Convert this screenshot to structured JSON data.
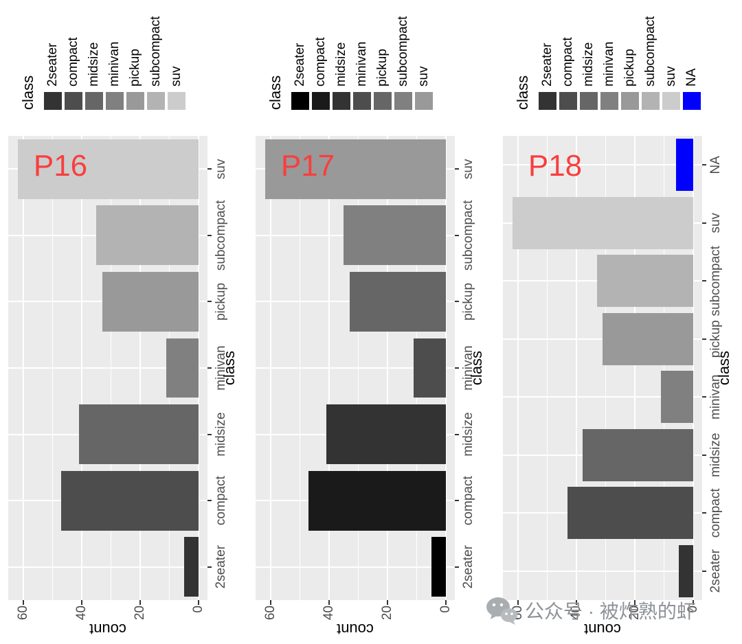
{
  "page": {
    "background": "#FFFFFF",
    "watermark": {
      "text": "公众号 · 被炸熟的虾",
      "icon": "wechat-icon",
      "text_color": "#8E9297",
      "icon_color": "#A9ADB0"
    }
  },
  "layout": {
    "arrangement": "three bar charts side by side, each rendered rotated 90 degrees counter-clockwise",
    "chart_rotation_deg": -90,
    "legend_position": "right of original chart (appears along top after rotation)"
  },
  "chart_style": {
    "panel_bg": "#EBEBEB",
    "grid_color": "#FFFFFF",
    "axis_text_color": "#4D4D4D",
    "axis_title_color": "#000000",
    "tick_color": "#333333",
    "panel_label_color": "#F93E3E"
  },
  "chart_data": [
    {
      "type": "bar",
      "panel_label": "P16",
      "title": "",
      "xlabel": "class",
      "ylabel": "count",
      "categories": [
        "2seater",
        "compact",
        "midsize",
        "minivan",
        "pickup",
        "subcompact",
        "suv"
      ],
      "values": [
        5,
        47,
        41,
        11,
        33,
        35,
        62
      ],
      "bar_colors": [
        "#333333",
        "#4D4D4D",
        "#666666",
        "#808080",
        "#999999",
        "#B3B3B3",
        "#CCCCCC"
      ],
      "yticks": [
        0,
        20,
        40,
        60
      ],
      "ylim": [
        0,
        65
      ],
      "grid": true,
      "legend_title": "class",
      "legend_labels": [
        "2seater",
        "compact",
        "midsize",
        "minivan",
        "pickup",
        "subcompact",
        "suv"
      ]
    },
    {
      "type": "bar",
      "panel_label": "P17",
      "title": "",
      "xlabel": "class",
      "ylabel": "count",
      "categories": [
        "2seater",
        "compact",
        "midsize",
        "minivan",
        "pickup",
        "subcompact",
        "suv"
      ],
      "values": [
        5,
        47,
        41,
        11,
        33,
        35,
        62
      ],
      "bar_colors": [
        "#000000",
        "#1A1A1A",
        "#333333",
        "#4D4D4D",
        "#666666",
        "#808080",
        "#999999"
      ],
      "yticks": [
        0,
        20,
        40,
        60
      ],
      "ylim": [
        0,
        65
      ],
      "grid": true,
      "legend_title": "class",
      "legend_labels": [
        "2seater",
        "compact",
        "midsize",
        "minivan",
        "pickup",
        "subcompact",
        "suv"
      ]
    },
    {
      "type": "bar",
      "panel_label": "P18",
      "title": "",
      "xlabel": "class",
      "ylabel": "count",
      "categories": [
        "2seater",
        "compact",
        "midsize",
        "minivan",
        "pickup",
        "subcompact",
        "suv",
        "NA"
      ],
      "values": [
        5,
        43,
        38,
        11,
        31,
        33,
        62,
        6
      ],
      "bar_colors": [
        "#333333",
        "#4D4D4D",
        "#666666",
        "#808080",
        "#999999",
        "#B3B3B3",
        "#CCCCCC",
        "#0000FF"
      ],
      "yticks": [
        0,
        20,
        40,
        60
      ],
      "ylim": [
        0,
        65
      ],
      "grid": true,
      "legend_title": "class",
      "legend_labels": [
        "2seater",
        "compact",
        "midsize",
        "minivan",
        "pickup",
        "subcompact",
        "suv",
        "NA"
      ]
    }
  ]
}
